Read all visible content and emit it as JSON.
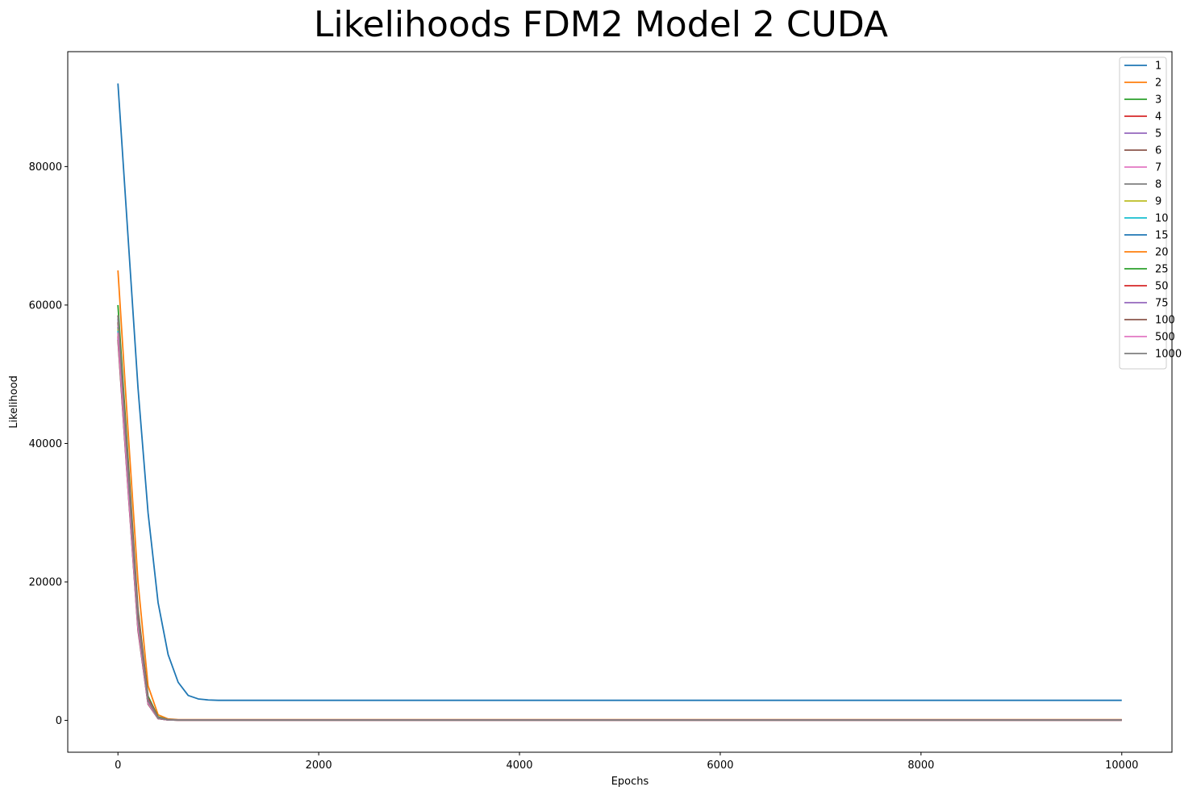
{
  "chart_data": {
    "type": "line",
    "title": "Likelihoods FDM2 Model 2 CUDA",
    "xlabel": "Epochs",
    "ylabel": "Likelihood",
    "xlim": [
      -500,
      10500
    ],
    "ylim": [
      -4600,
      96600
    ],
    "x_ticks": [
      0,
      2000,
      4000,
      6000,
      8000,
      10000
    ],
    "y_ticks": [
      0,
      20000,
      40000,
      60000,
      80000
    ],
    "legend_position": "top-right",
    "grid": false,
    "series": [
      {
        "name": "1",
        "color": "#1f77b4",
        "x": [
          0,
          100,
          200,
          300,
          400,
          500,
          600,
          700,
          800,
          900,
          1000,
          10000
        ],
        "values": [
          92000,
          70000,
          48000,
          30000,
          17000,
          9500,
          5500,
          3600,
          3100,
          2950,
          2900,
          2900
        ]
      },
      {
        "name": "2",
        "color": "#ff7f0e",
        "x": [
          0,
          100,
          200,
          300,
          400,
          500,
          600,
          10000
        ],
        "values": [
          65000,
          42000,
          20000,
          5000,
          800,
          200,
          100,
          100
        ]
      },
      {
        "name": "3",
        "color": "#2ca02c",
        "x": [
          0,
          100,
          200,
          300,
          400,
          500,
          600,
          10000
        ],
        "values": [
          60000,
          38000,
          16000,
          3500,
          500,
          120,
          80,
          80
        ]
      },
      {
        "name": "4",
        "color": "#d62728",
        "x": [
          0,
          100,
          200,
          300,
          400,
          500,
          600,
          10000
        ],
        "values": [
          58500,
          37000,
          15500,
          3200,
          400,
          110,
          70,
          70
        ]
      },
      {
        "name": "5",
        "color": "#9467bd",
        "x": [
          0,
          100,
          200,
          300,
          400,
          500,
          600,
          10000
        ],
        "values": [
          58000,
          36500,
          15000,
          3000,
          380,
          100,
          60,
          60
        ]
      },
      {
        "name": "6",
        "color": "#8c564b",
        "x": [
          0,
          100,
          200,
          300,
          400,
          500,
          600,
          10000
        ],
        "values": [
          57500,
          36000,
          14800,
          2900,
          360,
          90,
          60,
          60
        ]
      },
      {
        "name": "7",
        "color": "#e377c2",
        "x": [
          0,
          100,
          200,
          300,
          400,
          500,
          600,
          10000
        ],
        "values": [
          57000,
          35500,
          14500,
          2800,
          340,
          90,
          50,
          50
        ]
      },
      {
        "name": "8",
        "color": "#7f7f7f",
        "x": [
          0,
          100,
          200,
          300,
          400,
          500,
          600,
          10000
        ],
        "values": [
          56800,
          35300,
          14300,
          2750,
          330,
          85,
          50,
          50
        ]
      },
      {
        "name": "9",
        "color": "#bcbd22",
        "x": [
          0,
          100,
          200,
          300,
          400,
          500,
          600,
          10000
        ],
        "values": [
          56500,
          35000,
          14000,
          2700,
          320,
          80,
          50,
          50
        ]
      },
      {
        "name": "10",
        "color": "#17becf",
        "x": [
          0,
          100,
          200,
          300,
          400,
          500,
          600,
          10000
        ],
        "values": [
          56300,
          34800,
          13900,
          2650,
          310,
          80,
          50,
          50
        ]
      },
      {
        "name": "15",
        "color": "#1f77b4",
        "x": [
          0,
          100,
          200,
          300,
          400,
          500,
          600,
          10000
        ],
        "values": [
          56000,
          34500,
          13700,
          2600,
          300,
          75,
          45,
          45
        ]
      },
      {
        "name": "20",
        "color": "#ff7f0e",
        "x": [
          0,
          100,
          200,
          300,
          400,
          500,
          600,
          10000
        ],
        "values": [
          55800,
          34300,
          13600,
          2550,
          290,
          70,
          40,
          40
        ]
      },
      {
        "name": "25",
        "color": "#2ca02c",
        "x": [
          0,
          100,
          200,
          300,
          400,
          500,
          600,
          10000
        ],
        "values": [
          55600,
          34100,
          13500,
          2500,
          280,
          70,
          40,
          40
        ]
      },
      {
        "name": "50",
        "color": "#d62728",
        "x": [
          0,
          100,
          200,
          300,
          400,
          500,
          600,
          10000
        ],
        "values": [
          55400,
          33900,
          13300,
          2450,
          270,
          65,
          40,
          40
        ]
      },
      {
        "name": "75",
        "color": "#9467bd",
        "x": [
          0,
          100,
          200,
          300,
          400,
          500,
          600,
          10000
        ],
        "values": [
          55200,
          33700,
          13200,
          2400,
          260,
          60,
          35,
          35
        ]
      },
      {
        "name": "100",
        "color": "#8c564b",
        "x": [
          0,
          100,
          200,
          300,
          400,
          500,
          600,
          10000
        ],
        "values": [
          55000,
          33500,
          13000,
          2350,
          250,
          60,
          35,
          35
        ]
      },
      {
        "name": "500",
        "color": "#e377c2",
        "x": [
          0,
          100,
          200,
          300,
          400,
          500,
          600,
          10000
        ],
        "values": [
          56000,
          34000,
          13500,
          2500,
          280,
          70,
          40,
          40
        ]
      },
      {
        "name": "1000",
        "color": "#7f7f7f",
        "x": [
          0,
          100,
          200,
          300,
          400,
          500,
          600,
          10000
        ],
        "values": [
          58500,
          36000,
          14500,
          2800,
          330,
          85,
          50,
          50
        ]
      }
    ]
  }
}
